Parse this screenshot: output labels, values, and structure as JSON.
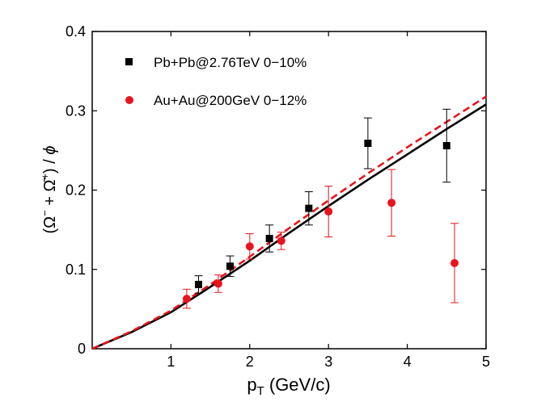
{
  "chart_data": {
    "type": "scatter",
    "xlabel": {
      "main": "p",
      "sub": "T",
      "unit": " (GeV/c)"
    },
    "ylabel": {
      "open": "(",
      "omega1": "Ω",
      "sup1": "−",
      "plus": " + ",
      "omega2": "Ω̄",
      "sup2": "+",
      "close": ")",
      "slash": " / ",
      "phi": "ϕ"
    },
    "xlim": [
      0,
      5
    ],
    "ylim": [
      0,
      0.4
    ],
    "xticks": [
      1,
      2,
      3,
      4,
      5
    ],
    "xtick_labels": [
      "1",
      "2",
      "3",
      "4",
      "5"
    ],
    "yticks": [
      0,
      0.1,
      0.2,
      0.3,
      0.4
    ],
    "ytick_labels": [
      "0",
      "0.1",
      "0.2",
      "0.3",
      "0.4"
    ],
    "legend_position": "top-left",
    "series": [
      {
        "name": "Pb+Pb@2.76TeV 0−10%",
        "marker": "square",
        "color": "#000000",
        "x": [
          1.35,
          1.75,
          2.25,
          2.75,
          3.5,
          4.5
        ],
        "y": [
          0.081,
          0.104,
          0.139,
          0.177,
          0.259,
          0.256
        ],
        "err": [
          0.011,
          0.013,
          0.017,
          0.021,
          0.032,
          0.046
        ]
      },
      {
        "name": "Au+Au@200GeV 0−12%",
        "marker": "circle",
        "color": "#e8141d",
        "x": [
          1.2,
          1.6,
          2.0,
          2.4,
          3.0,
          3.8,
          4.6
        ],
        "y": [
          0.063,
          0.082,
          0.129,
          0.136,
          0.173,
          0.184,
          0.108
        ],
        "err": [
          0.012,
          0.011,
          0.016,
          0.011,
          0.032,
          0.042,
          0.05
        ]
      }
    ],
    "curves": [
      {
        "name": "model-solid",
        "style": "solid",
        "color": "#000000",
        "x": [
          0,
          0.5,
          1.0,
          1.5,
          2.0,
          2.5,
          3.0,
          3.5,
          4.0,
          4.5,
          5.0
        ],
        "y": [
          0,
          0.021,
          0.046,
          0.078,
          0.111,
          0.146,
          0.18,
          0.213,
          0.245,
          0.277,
          0.308
        ]
      },
      {
        "name": "model-dashed",
        "style": "dashed",
        "color": "#e8141d",
        "x": [
          0,
          0.5,
          1.0,
          1.5,
          2.0,
          2.5,
          3.0,
          3.5,
          4.0,
          4.5,
          5.0
        ],
        "y": [
          0,
          0.022,
          0.048,
          0.081,
          0.116,
          0.152,
          0.187,
          0.221,
          0.254,
          0.286,
          0.318
        ]
      }
    ]
  }
}
